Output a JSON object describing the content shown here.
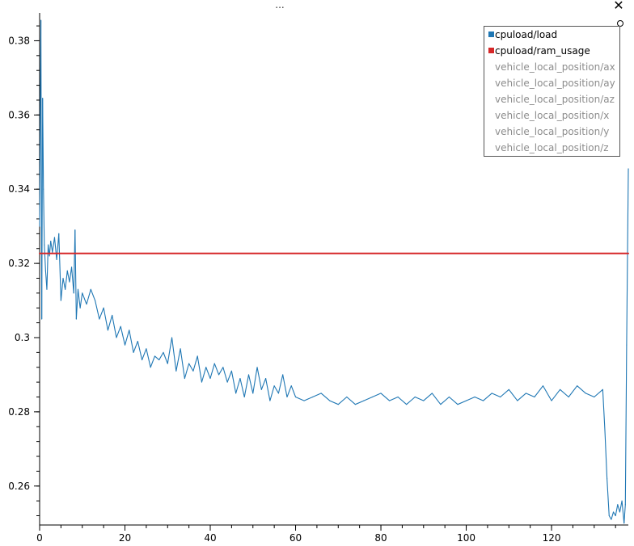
{
  "window": {
    "menu_dots": "...",
    "close_glyph": "✕"
  },
  "legend": {
    "items": [
      {
        "label": "cpuload/load",
        "color": "#1f77b4",
        "active": true
      },
      {
        "label": "cpuload/ram_usage",
        "color": "#d62728",
        "active": true
      },
      {
        "label": "vehicle_local_position/ax",
        "active": false
      },
      {
        "label": "vehicle_local_position/ay",
        "active": false
      },
      {
        "label": "vehicle_local_position/az",
        "active": false
      },
      {
        "label": "vehicle_local_position/x",
        "active": false
      },
      {
        "label": "vehicle_local_position/y",
        "active": false
      },
      {
        "label": "vehicle_local_position/z",
        "active": false
      }
    ]
  },
  "chart_data": {
    "type": "line",
    "title": "",
    "xlabel": "",
    "ylabel": "",
    "xlim": [
      0,
      138
    ],
    "ylim": [
      0.2495,
      0.3875
    ],
    "xticks": [
      0,
      20,
      40,
      60,
      80,
      100,
      120
    ],
    "xtick_labels": [
      "0",
      "20",
      "40",
      "60",
      "80",
      "100",
      "120"
    ],
    "yticks": [
      0.26,
      0.28,
      0.3,
      0.32,
      0.34,
      0.36,
      0.38
    ],
    "ytick_labels": [
      "0.26",
      "0.28",
      "0.3",
      "0.32",
      "0.34",
      "0.36",
      "0.38"
    ],
    "grid": false,
    "legend_position": "top-right",
    "series": [
      {
        "name": "cpuload/load",
        "color": "#1f77b4",
        "x": [
          0,
          0.3,
          0.5,
          0.7,
          0.9,
          1.1,
          1.4,
          1.7,
          2.0,
          2.3,
          2.6,
          3.0,
          3.5,
          4.0,
          4.5,
          5.0,
          5.5,
          6.0,
          6.5,
          7.0,
          7.5,
          8.0,
          8.3,
          8.6,
          9.0,
          9.5,
          10,
          11,
          12,
          13,
          14,
          15,
          16,
          17,
          18,
          19,
          20,
          21,
          22,
          23,
          24,
          25,
          26,
          27,
          28,
          29,
          30,
          31,
          32,
          33,
          34,
          35,
          36,
          37,
          38,
          39,
          40,
          41,
          42,
          43,
          44,
          45,
          46,
          47,
          48,
          49,
          50,
          51,
          52,
          53,
          54,
          55,
          56,
          57,
          58,
          59,
          60,
          62,
          64,
          66,
          68,
          70,
          72,
          74,
          76,
          78,
          80,
          82,
          84,
          86,
          88,
          90,
          92,
          94,
          96,
          98,
          100,
          102,
          104,
          106,
          108,
          110,
          112,
          114,
          116,
          118,
          120,
          122,
          124,
          126,
          128,
          130,
          132,
          132.5,
          133,
          133.5,
          134,
          134.5,
          135,
          135.5,
          136,
          136.5,
          137,
          137.3,
          137.6,
          138
        ],
        "values": [
          0.33,
          0.3855,
          0.305,
          0.3645,
          0.34,
          0.325,
          0.318,
          0.313,
          0.325,
          0.322,
          0.326,
          0.323,
          0.327,
          0.321,
          0.328,
          0.31,
          0.316,
          0.313,
          0.318,
          0.315,
          0.319,
          0.312,
          0.329,
          0.305,
          0.313,
          0.308,
          0.312,
          0.309,
          0.313,
          0.31,
          0.305,
          0.308,
          0.302,
          0.306,
          0.3,
          0.303,
          0.298,
          0.302,
          0.296,
          0.299,
          0.294,
          0.297,
          0.292,
          0.295,
          0.294,
          0.296,
          0.293,
          0.3,
          0.291,
          0.297,
          0.289,
          0.293,
          0.291,
          0.295,
          0.288,
          0.292,
          0.289,
          0.293,
          0.29,
          0.292,
          0.288,
          0.291,
          0.285,
          0.289,
          0.284,
          0.29,
          0.285,
          0.292,
          0.286,
          0.289,
          0.283,
          0.287,
          0.285,
          0.29,
          0.284,
          0.287,
          0.284,
          0.283,
          0.284,
          0.285,
          0.283,
          0.282,
          0.284,
          0.282,
          0.283,
          0.284,
          0.285,
          0.283,
          0.284,
          0.282,
          0.284,
          0.283,
          0.285,
          0.282,
          0.284,
          0.282,
          0.283,
          0.284,
          0.283,
          0.285,
          0.284,
          0.286,
          0.283,
          0.285,
          0.284,
          0.287,
          0.283,
          0.286,
          0.284,
          0.287,
          0.285,
          0.284,
          0.286,
          0.275,
          0.262,
          0.252,
          0.251,
          0.253,
          0.252,
          0.255,
          0.253,
          0.256,
          0.25,
          0.255,
          0.298,
          0.3455
        ]
      },
      {
        "name": "cpuload/ram_usage",
        "color": "#d62728",
        "x": [
          0,
          138
        ],
        "values": [
          0.3227,
          0.3227
        ]
      }
    ]
  }
}
